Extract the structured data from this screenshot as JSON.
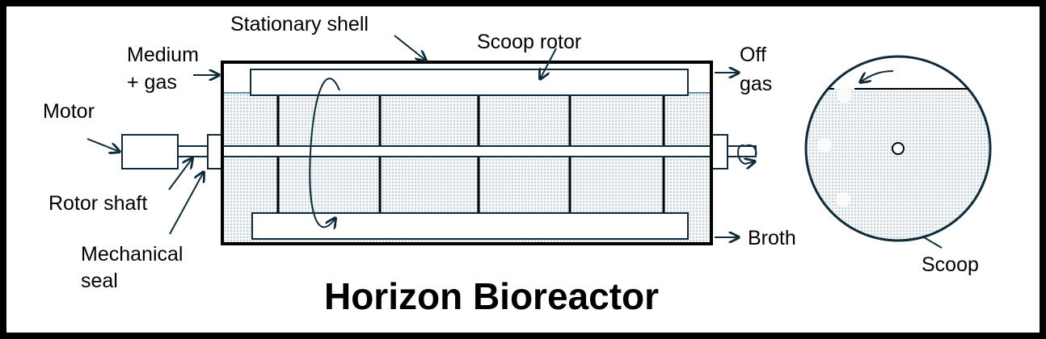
{
  "title": "Horizon Bioreactor",
  "labels": {
    "stationary_shell": "Stationary shell",
    "scoop_rotor": "Scoop rotor",
    "medium_line1": "Medium",
    "medium_line2": "+ gas",
    "off_gas_line1": "Off",
    "off_gas_line2": "gas",
    "motor": "Motor",
    "rotor_shaft": "Rotor shaft",
    "seal_line1": "Mechanical",
    "seal_line2": "seal",
    "broth": "Broth",
    "scoop": "Scoop"
  },
  "colors": {
    "line": "#0f2a3a",
    "liquid_dots": "#7f9aa8",
    "liquid_surface": "#2a6f95"
  }
}
